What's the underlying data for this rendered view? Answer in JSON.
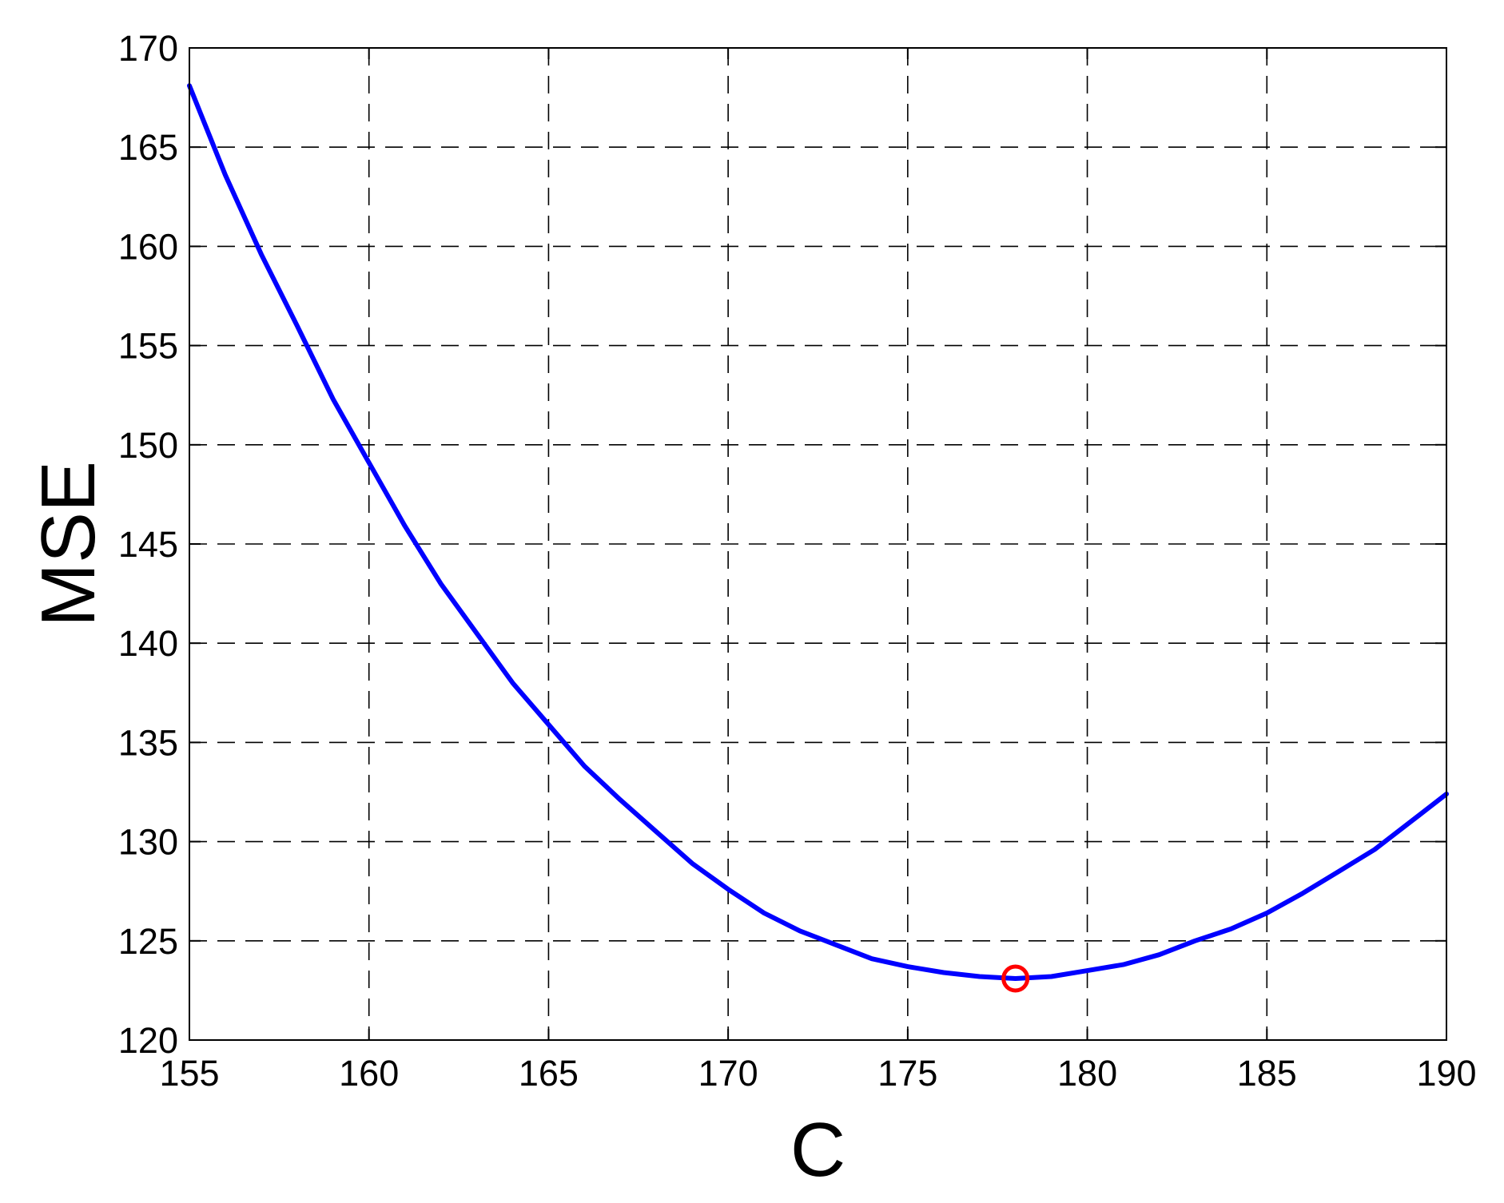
{
  "chart_data": {
    "type": "line",
    "title": "",
    "xlabel": "C",
    "ylabel": "MSE",
    "xlim": [
      155,
      190
    ],
    "ylim": [
      120,
      170
    ],
    "xticks": [
      155,
      160,
      165,
      170,
      175,
      180,
      185,
      190
    ],
    "yticks": [
      120,
      125,
      130,
      135,
      140,
      145,
      150,
      155,
      160,
      165,
      170
    ],
    "xtick_labels": [
      "155",
      "160",
      "165",
      "170",
      "175",
      "180",
      "185",
      "190"
    ],
    "ytick_labels": [
      "120",
      "125",
      "130",
      "135",
      "140",
      "145",
      "150",
      "155",
      "160",
      "165",
      "170"
    ],
    "grid": true,
    "grid_style": "dashed",
    "series": [
      {
        "color": "#0000ff",
        "x": [
          155,
          156,
          157,
          158,
          159,
          160,
          161,
          162,
          163,
          164,
          165,
          166,
          167,
          168,
          169,
          170,
          171,
          172,
          173,
          174,
          175,
          176,
          177,
          178,
          179,
          180,
          181,
          182,
          183,
          184,
          185,
          186,
          187,
          188,
          189,
          190
        ],
        "y": [
          168.1,
          163.6,
          159.6,
          156.0,
          152.3,
          149.1,
          145.9,
          143.0,
          140.5,
          138.0,
          135.9,
          133.8,
          132.1,
          130.5,
          128.9,
          127.6,
          126.4,
          125.5,
          124.8,
          124.1,
          123.7,
          123.4,
          123.2,
          123.1,
          123.2,
          123.5,
          123.8,
          124.3,
          125.0,
          125.6,
          126.4,
          127.4,
          128.5,
          129.6,
          131.0,
          132.4
        ]
      }
    ],
    "markers": [
      {
        "x": 178,
        "y": 123.1,
        "color": "#ff0000",
        "shape": "circle-open"
      }
    ],
    "colors": {
      "line": "#0000ff",
      "marker": "#ff0000",
      "axes": "#000000",
      "grid": "#000000",
      "background": "#ffffff"
    }
  }
}
